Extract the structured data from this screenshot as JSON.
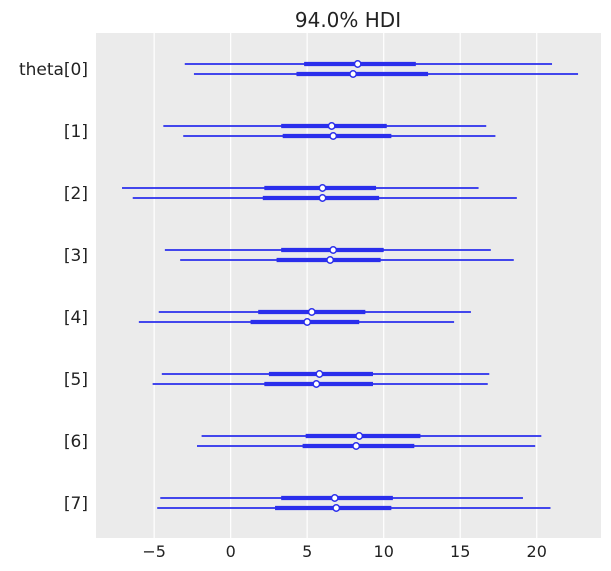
{
  "chart_data": {
    "type": "forest",
    "title": "94.0% HDI",
    "xlabel": "",
    "ylabel": "",
    "xlim": [
      -8.8,
      24.2
    ],
    "xticks": [
      -5,
      0,
      5,
      10,
      15,
      20
    ],
    "xtick_labels": [
      "−5",
      "0",
      "5",
      "10",
      "15",
      "20"
    ],
    "grid": true,
    "line_color": "#2a2eec",
    "background_color": "#ebebeb",
    "rows": [
      {
        "label": "theta[0]",
        "chains": [
          {
            "hdi_low": -3.0,
            "hdi_high": 21.0,
            "iqr_low": 4.8,
            "iqr_high": 12.1,
            "mean": 8.3
          },
          {
            "hdi_low": -2.4,
            "hdi_high": 22.7,
            "iqr_low": 4.3,
            "iqr_high": 12.9,
            "mean": 8.0
          }
        ]
      },
      {
        "label": "[1]",
        "chains": [
          {
            "hdi_low": -4.4,
            "hdi_high": 16.7,
            "iqr_low": 3.3,
            "iqr_high": 10.2,
            "mean": 6.6
          },
          {
            "hdi_low": -3.1,
            "hdi_high": 17.3,
            "iqr_low": 3.4,
            "iqr_high": 10.5,
            "mean": 6.7
          }
        ]
      },
      {
        "label": "[2]",
        "chains": [
          {
            "hdi_low": -7.1,
            "hdi_high": 16.2,
            "iqr_low": 2.2,
            "iqr_high": 9.5,
            "mean": 6.0
          },
          {
            "hdi_low": -6.4,
            "hdi_high": 18.7,
            "iqr_low": 2.1,
            "iqr_high": 9.7,
            "mean": 6.0
          }
        ]
      },
      {
        "label": "[3]",
        "chains": [
          {
            "hdi_low": -4.3,
            "hdi_high": 17.0,
            "iqr_low": 3.3,
            "iqr_high": 10.0,
            "mean": 6.7
          },
          {
            "hdi_low": -3.3,
            "hdi_high": 18.5,
            "iqr_low": 3.0,
            "iqr_high": 9.8,
            "mean": 6.5
          }
        ]
      },
      {
        "label": "[4]",
        "chains": [
          {
            "hdi_low": -4.7,
            "hdi_high": 15.7,
            "iqr_low": 1.8,
            "iqr_high": 8.8,
            "mean": 5.3
          },
          {
            "hdi_low": -6.0,
            "hdi_high": 14.6,
            "iqr_low": 1.3,
            "iqr_high": 8.4,
            "mean": 5.0
          }
        ]
      },
      {
        "label": "[5]",
        "chains": [
          {
            "hdi_low": -4.5,
            "hdi_high": 16.9,
            "iqr_low": 2.5,
            "iqr_high": 9.3,
            "mean": 5.8
          },
          {
            "hdi_low": -5.1,
            "hdi_high": 16.8,
            "iqr_low": 2.2,
            "iqr_high": 9.3,
            "mean": 5.6
          }
        ]
      },
      {
        "label": "[6]",
        "chains": [
          {
            "hdi_low": -1.9,
            "hdi_high": 20.3,
            "iqr_low": 4.9,
            "iqr_high": 12.4,
            "mean": 8.4
          },
          {
            "hdi_low": -2.2,
            "hdi_high": 19.9,
            "iqr_low": 4.7,
            "iqr_high": 12.0,
            "mean": 8.2
          }
        ]
      },
      {
        "label": "[7]",
        "chains": [
          {
            "hdi_low": -4.6,
            "hdi_high": 19.1,
            "iqr_low": 3.3,
            "iqr_high": 10.6,
            "mean": 6.8
          },
          {
            "hdi_low": -4.8,
            "hdi_high": 20.9,
            "iqr_low": 2.9,
            "iqr_high": 10.5,
            "mean": 6.9
          }
        ]
      }
    ]
  }
}
